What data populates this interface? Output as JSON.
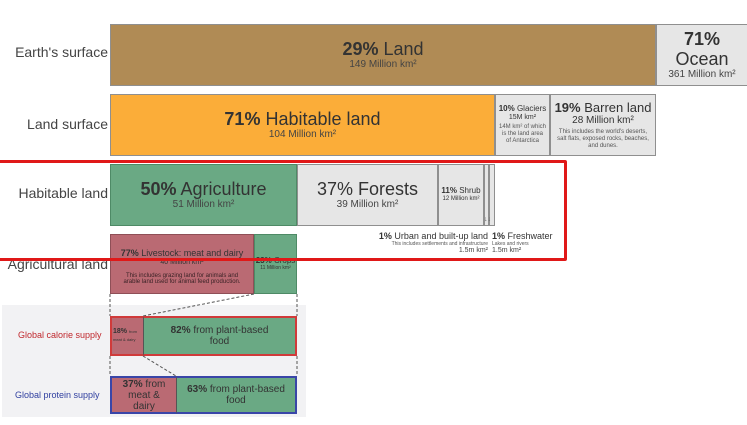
{
  "rows": {
    "earth": "Earth's surface",
    "land": "Land surface",
    "habitable": "Habitable land",
    "agricultural": "Agricultural land"
  },
  "earth": {
    "land": {
      "pct": "29%",
      "name": "Land",
      "area": "149 Million km²"
    },
    "ocean": {
      "pct": "71%",
      "name": "Ocean",
      "area": "361 Million km²"
    }
  },
  "land": {
    "habitable": {
      "pct": "71%",
      "name": "Habitable land",
      "area": "104 Million km²"
    },
    "glaciers": {
      "pct": "10%",
      "name": "Glaciers",
      "area": "15M km²",
      "note": "14M km² of which is the land area of Antarctica"
    },
    "barren": {
      "pct": "19%",
      "name": "Barren land",
      "area": "28 Million km²",
      "note": "This includes the world's deserts, salt flats, exposed rocks, beaches, and dunes."
    }
  },
  "habitable": {
    "agriculture": {
      "pct": "50%",
      "name": "Agriculture",
      "area": "51 Million km²"
    },
    "forests": {
      "pct": "37%",
      "name": "Forests",
      "area": "39 Million km²"
    },
    "shrub": {
      "pct": "11%",
      "name": "Shrub",
      "area": "12 Million km²"
    },
    "urban": {
      "pct": "1%",
      "name": "Urban and built-up land",
      "note": "This includes settlements and infrastructure",
      "area": "1.5m km²"
    },
    "freshwater": {
      "pct": "1%",
      "name": "Freshwater",
      "note": "Lakes and rivers",
      "area": "1.5m km²"
    }
  },
  "agricultural": {
    "livestock": {
      "pct": "77%",
      "name": "Livestock: meat and dairy",
      "area": "40 Million km²",
      "note": "This includes grazing land for animals and arable land used for animal feed production."
    },
    "crops": {
      "pct": "23%",
      "name": "Crops",
      "area": "11 Million km²"
    }
  },
  "calorie": {
    "label": "Global calorie supply",
    "meat_pct": "18%",
    "meat_text": "from meat & dairy",
    "plant_pct": "82%",
    "plant_text": "from plant-based food"
  },
  "protein": {
    "label": "Global protein supply",
    "meat_pct": "37%",
    "meat_text": "from meat & dairy",
    "plant_pct": "63%",
    "plant_text": "from plant-based food"
  },
  "colors": {
    "land": "#b08b55",
    "ocean": "#e6e6e6",
    "habitable": "#fbad39",
    "grey": "#e6e6e6",
    "agriculture": "#6aa984",
    "livestock": "#ba6a73",
    "highlight": "#e01818",
    "calorie_label": "#c0282d",
    "protein_label": "#3140a0"
  }
}
